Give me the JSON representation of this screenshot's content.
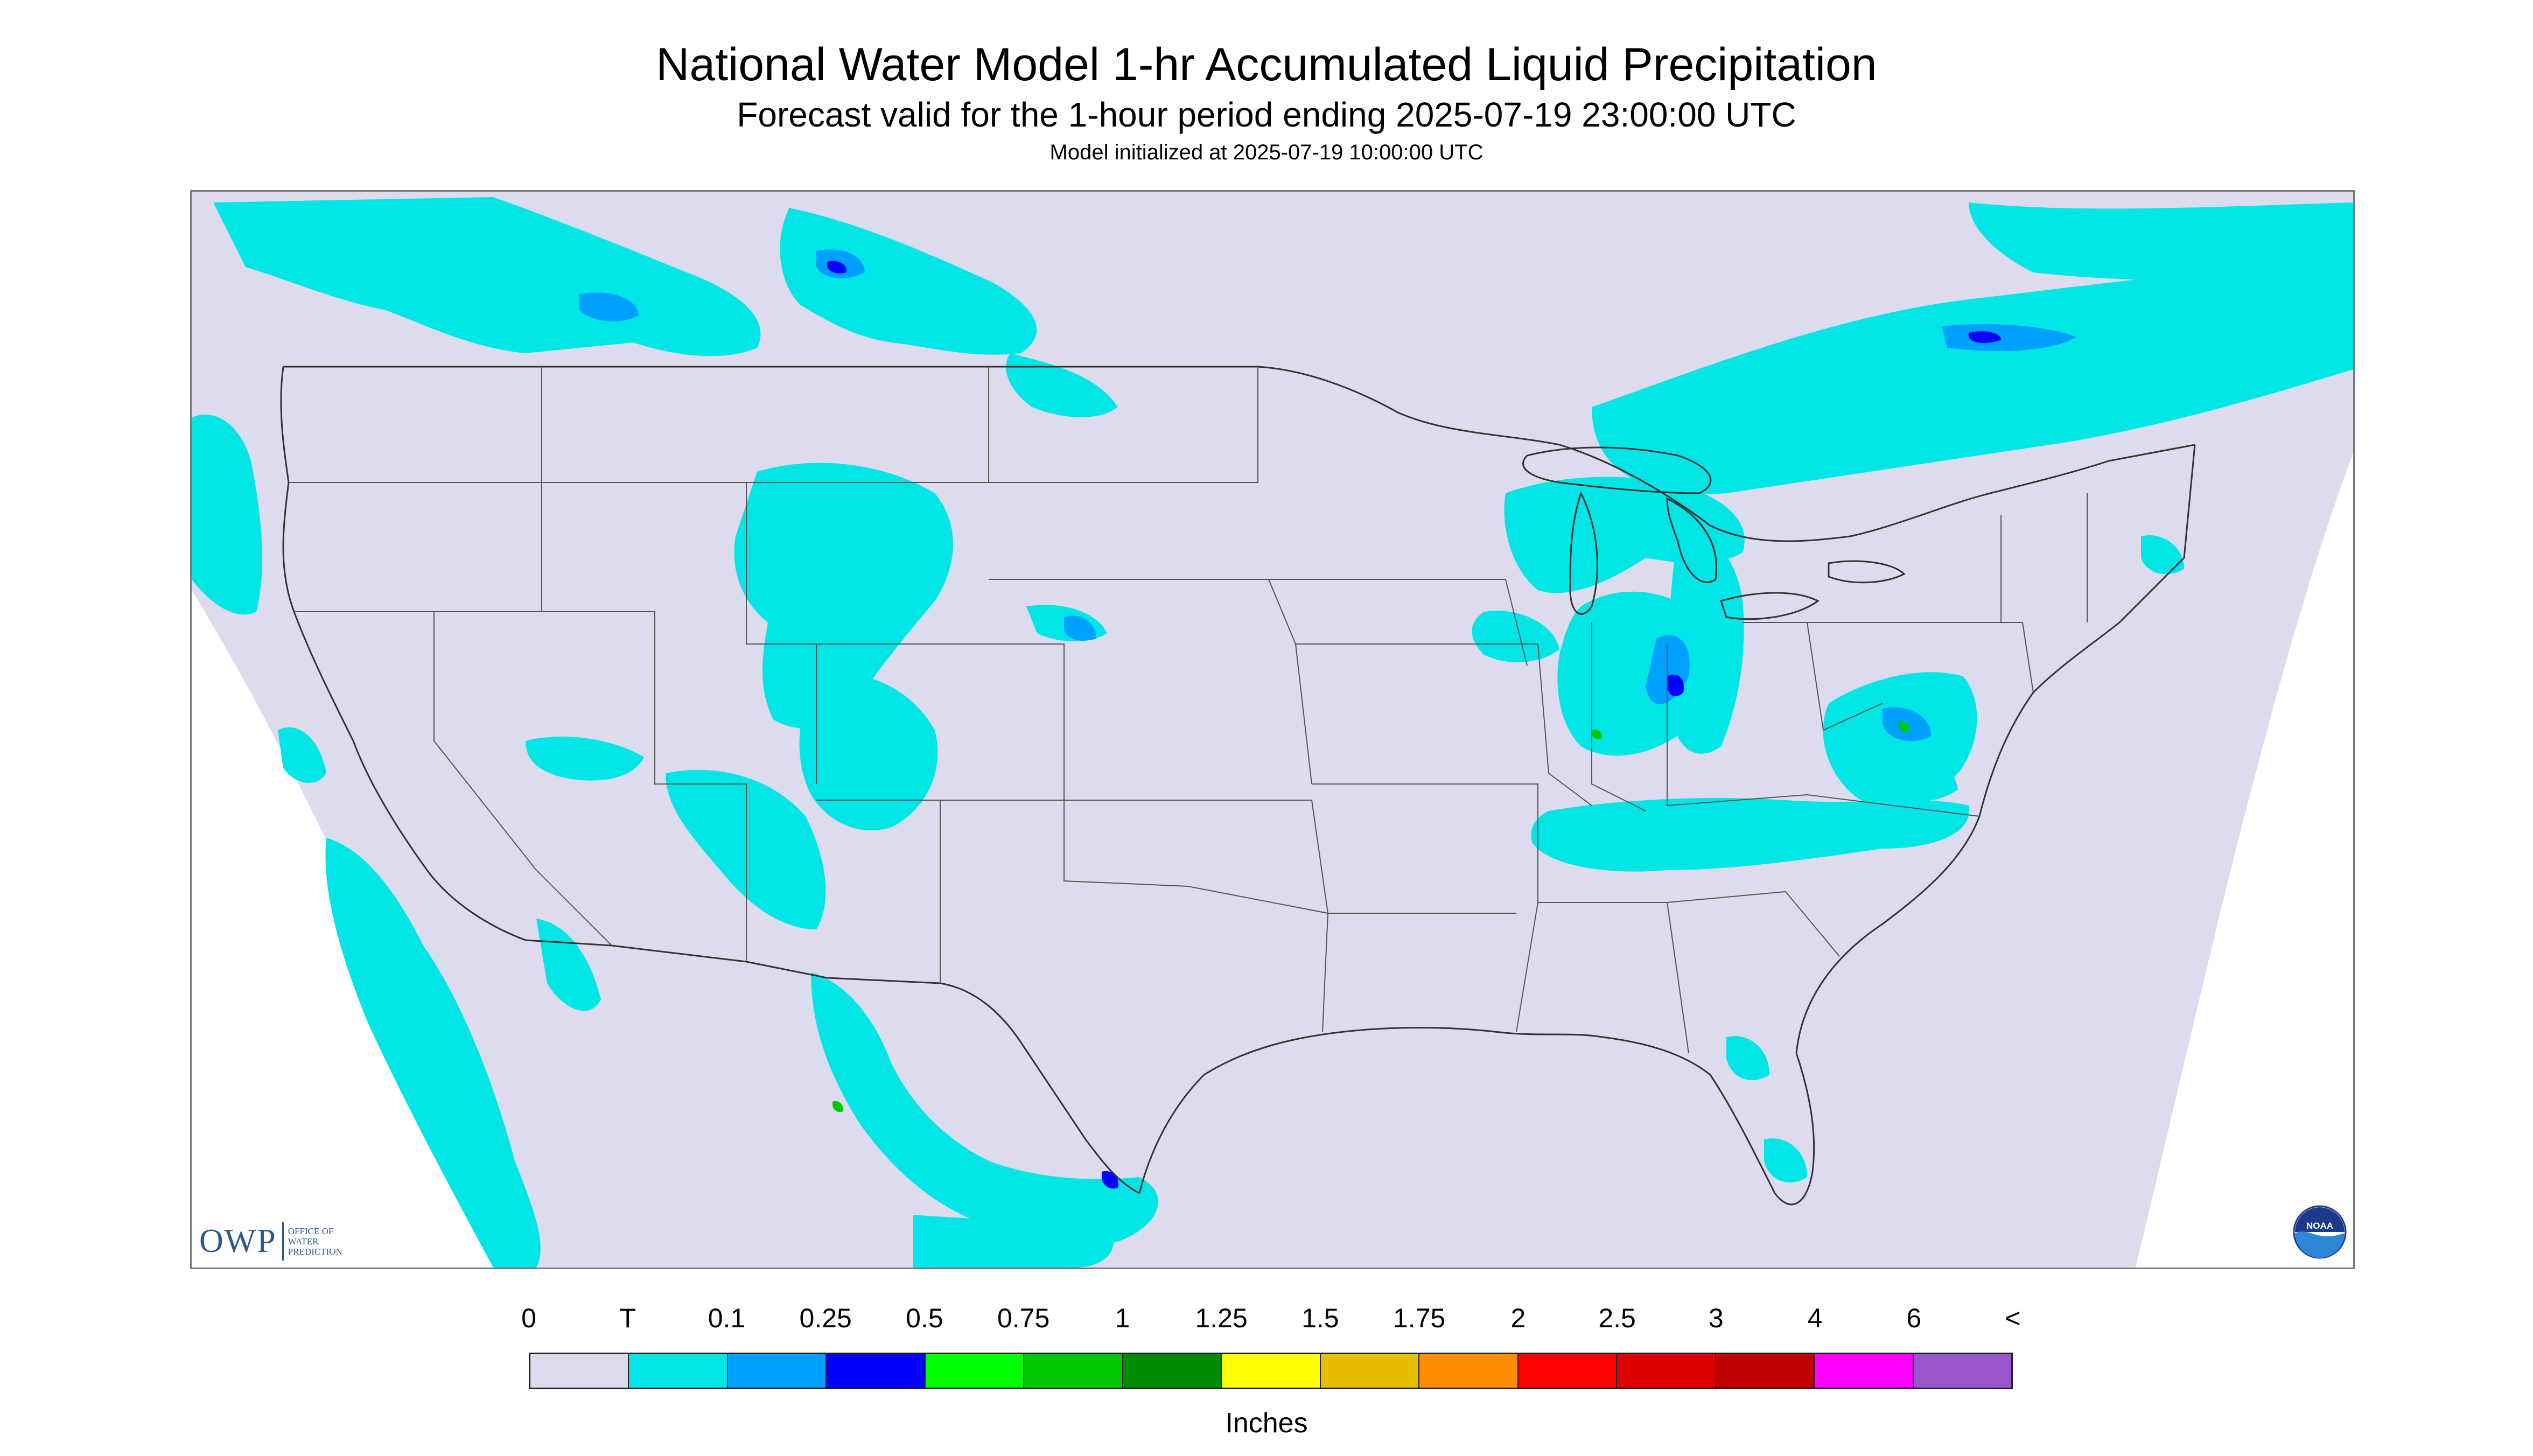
{
  "title": "National Water Model 1-hr Accumulated Liquid Precipitation",
  "subtitle": "Forecast valid for the 1-hour period ending 2025-07-19 23:00:00 UTC",
  "init": "Model initialized at 2025-07-19 10:00:00 UTC",
  "logos": {
    "owp_mark": "OWP",
    "owp_text": [
      "Office of",
      "Water",
      "Prediction"
    ],
    "noaa_text": "NOAA"
  },
  "legend": {
    "labels": [
      "0",
      "T",
      "0.1",
      "0.25",
      "0.5",
      "0.75",
      "1",
      "1.25",
      "1.5",
      "1.75",
      "2",
      "2.5",
      "3",
      "4",
      "6",
      "<"
    ],
    "colors": [
      "#dcdcee",
      "#00e6e6",
      "#00a0ff",
      "#0000ff",
      "#00ff00",
      "#00c800",
      "#008c00",
      "#ffff00",
      "#e6be00",
      "#ff8c00",
      "#ff0000",
      "#dc0000",
      "#be0000",
      "#ff00ff",
      "#9955cc"
    ],
    "units": "Inches"
  },
  "colors": {
    "domain_fill": "#dcdcee",
    "trace": "#00e6e6",
    "light": "#00a0ff",
    "moderate": "#0000ff",
    "heavy": "#00c800",
    "borders": "#333333"
  }
}
